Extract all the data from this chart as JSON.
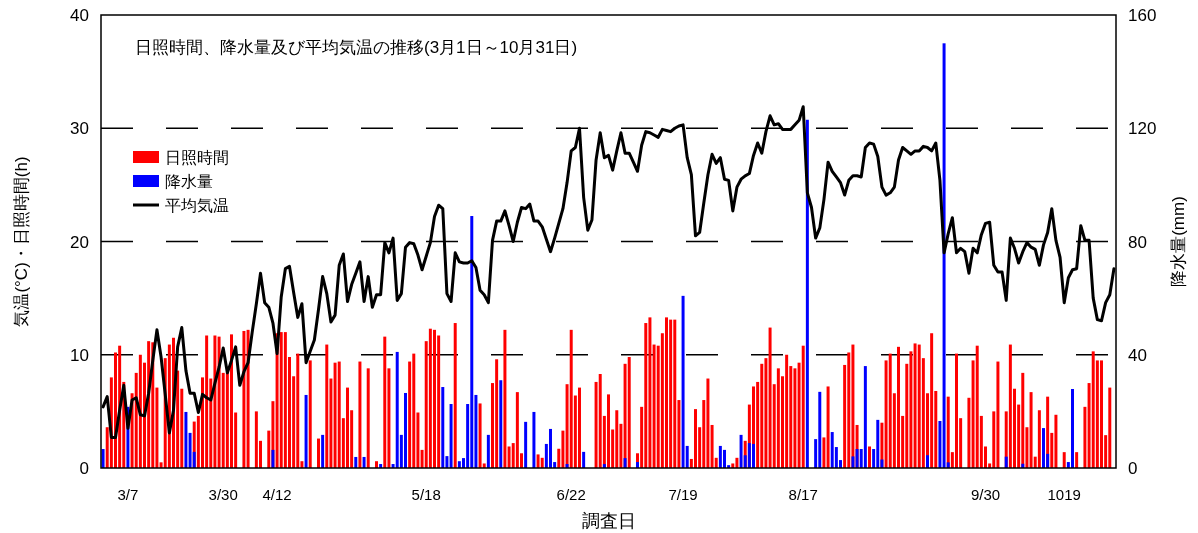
{
  "chart_data": {
    "type": "bar",
    "title": "日照時間、降水量及び平均気温の推移(3月1日～10月31日)",
    "xlabel": "調査日",
    "ylabel": "気温(°C)・日照時間(h)",
    "y2label": "降水量(mm)",
    "categories": [
      null,
      null,
      null,
      null,
      null,
      null,
      "3/7",
      null,
      null,
      null,
      null,
      null,
      null,
      null,
      null,
      null,
      null,
      null,
      null,
      null,
      null,
      null,
      null,
      null,
      null,
      null,
      null,
      null,
      null,
      "3/30",
      null,
      null,
      null,
      null,
      null,
      null,
      null,
      null,
      null,
      null,
      null,
      null,
      "4/12",
      null,
      null,
      null,
      null,
      null,
      null,
      null,
      null,
      null,
      null,
      null,
      null,
      null,
      null,
      null,
      null,
      null,
      null,
      null,
      null,
      null,
      null,
      null,
      null,
      null,
      null,
      null,
      null,
      null,
      null,
      null,
      null,
      null,
      null,
      null,
      "5/18",
      null,
      null,
      null,
      null,
      null,
      null,
      null,
      null,
      null,
      null,
      null,
      null,
      null,
      null,
      null,
      null,
      null,
      null,
      null,
      null,
      null,
      null,
      null,
      null,
      null,
      null,
      null,
      null,
      null,
      null,
      null,
      null,
      null,
      null,
      "6/22",
      null,
      null,
      null,
      null,
      null,
      null,
      null,
      null,
      null,
      null,
      null,
      null,
      null,
      null,
      null,
      null,
      null,
      null,
      null,
      null,
      null,
      null,
      null,
      null,
      null,
      null,
      "7/19",
      null,
      null,
      null,
      null,
      null,
      null,
      null,
      null,
      null,
      null,
      null,
      null,
      null,
      null,
      null,
      null,
      null,
      null,
      null,
      null,
      null,
      null,
      null,
      null,
      null,
      null,
      null,
      null,
      "8/17",
      null,
      null,
      null,
      null,
      null,
      null,
      null,
      null,
      null,
      null,
      null,
      null,
      null,
      null,
      null,
      null,
      null,
      null,
      null,
      null,
      null,
      null,
      null,
      null,
      null,
      null,
      null,
      null,
      null,
      null,
      null,
      null,
      null,
      null,
      null,
      null,
      null,
      null,
      null,
      null,
      null,
      null,
      null,
      "9/30",
      null,
      null,
      null,
      null,
      null,
      null,
      null,
      null,
      null,
      null,
      null,
      null,
      null,
      null,
      null,
      null,
      null,
      null,
      "1019",
      null,
      null,
      null,
      null,
      null,
      null,
      null,
      null,
      null,
      null,
      null,
      null
    ],
    "series": [
      {
        "name": "日照時間",
        "color": "#ff0000",
        "values": [
          null,
          3.6,
          8.0,
          10.2,
          10.8,
          7.6,
          null,
          6.6,
          8.4,
          10.0,
          9.3,
          11.2,
          11.1,
          7.1,
          0.5,
          9.7,
          10.9,
          11.5,
          8.6,
          7.0,
          null,
          null,
          4.1,
          4.6,
          8.0,
          11.7,
          7.9,
          11.7,
          11.6,
          8.4,
          8.4,
          11.8,
          4.9,
          null,
          12.1,
          12.2,
          null,
          5.0,
          2.4,
          null,
          3.3,
          5.9,
          11.9,
          12.0,
          12.0,
          9.8,
          8.1,
          10.1,
          0.6,
          null,
          9.5,
          null,
          2.6,
          null,
          10.9,
          7.9,
          9.3,
          9.4,
          4.4,
          7.1,
          5.1,
          null,
          9.4,
          null,
          8.8,
          null,
          0.6,
          null,
          11.6,
          8.8,
          null,
          null,
          null,
          null,
          9.4,
          10.1,
          4.9,
          1.6,
          11.2,
          12.3,
          12.2,
          11.7,
          null,
          null,
          null,
          12.8,
          null,
          null,
          null,
          null,
          null,
          5.7,
          0.4,
          null,
          7.5,
          9.6,
          null,
          12.2,
          1.9,
          2.2,
          6.7,
          1.3,
          null,
          null,
          null,
          1.2,
          0.9,
          null,
          null,
          null,
          1.7,
          3.3,
          7.4,
          12.2,
          6.4,
          7.1,
          null,
          null,
          null,
          7.6,
          8.3,
          4.6,
          6.5,
          3.4,
          5.1,
          3.9,
          9.2,
          9.8,
          null,
          1.3,
          5.4,
          12.8,
          13.3,
          10.9,
          10.8,
          11.9,
          13.3,
          13.1,
          13.1,
          6.0,
          null,
          null,
          0.8,
          5.2,
          3.6,
          6.0,
          7.9,
          3.8,
          0.9,
          null,
          null,
          null,
          0.4,
          0.9,
          null,
          2.4,
          5.6,
          7.2,
          7.6,
          9.2,
          9.7,
          12.4,
          7.4,
          8.8,
          8.1,
          10.0,
          9.0,
          8.8,
          9.3,
          10.8,
          null,
          null,
          null,
          null,
          2.7,
          7.2,
          null,
          null,
          null,
          9.1,
          10.2,
          10.9,
          3.8,
          null,
          null,
          1.9,
          null,
          null,
          4.0,
          9.5,
          10.1,
          6.6,
          10.7,
          4.6,
          9.2,
          10.3,
          11.0,
          10.9,
          9.7,
          6.6,
          11.9,
          6.8,
          null,
          null,
          6.3,
          1.4,
          10.1,
          4.4,
          null,
          6.2,
          9.5,
          10.8,
          4.6,
          1.9,
          0.4,
          5.0,
          9.4,
          null,
          5.0,
          10.9,
          7.0,
          5.6,
          8.4,
          3.6,
          6.7,
          1.0,
          5.1,
          null,
          6.3,
          3.1,
          4.7,
          null,
          1.4,
          null,
          null,
          1.4,
          null,
          5.4,
          7.5,
          10.3,
          9.5,
          9.5,
          2.9,
          7.1,
          null
        ]
      },
      {
        "name": "降水量",
        "axis": "y2",
        "color": "#0000ff",
        "values": [
          6.7,
          null,
          null,
          null,
          null,
          null,
          21.6,
          null,
          null,
          null,
          null,
          null,
          null,
          null,
          null,
          null,
          null,
          null,
          null,
          null,
          19.8,
          12.4,
          5.7,
          null,
          null,
          null,
          null,
          null,
          null,
          null,
          null,
          null,
          null,
          null,
          null,
          null,
          null,
          null,
          null,
          null,
          null,
          6.4,
          null,
          null,
          null,
          null,
          null,
          null,
          null,
          25.8,
          null,
          null,
          null,
          11.7,
          null,
          null,
          null,
          null,
          null,
          null,
          null,
          3.9,
          null,
          3.9,
          null,
          null,
          null,
          1.4,
          null,
          null,
          1.4,
          41,
          11.7,
          26.5,
          null,
          null,
          null,
          null,
          null,
          null,
          null,
          null,
          28.6,
          4.2,
          22.6,
          null,
          2.4,
          3.5,
          22.6,
          89,
          25.8,
          null,
          null,
          11.7,
          null,
          null,
          31,
          null,
          null,
          null,
          null,
          null,
          16.3,
          null,
          19.8,
          null,
          null,
          8.5,
          13.8,
          2.1,
          null,
          null,
          1.4,
          null,
          null,
          null,
          5.7,
          null,
          null,
          null,
          null,
          1.4,
          null,
          null,
          null,
          null,
          3.5,
          null,
          null,
          2.1,
          null,
          null,
          null,
          null,
          null,
          null,
          null,
          null,
          null,
          null,
          60.8,
          7.8,
          null,
          null,
          null,
          null,
          null,
          null,
          null,
          7.8,
          6.4,
          1.0,
          null,
          null,
          11.7,
          4.5,
          8.8,
          8.5,
          null,
          null,
          null,
          null,
          null,
          null,
          null,
          null,
          null,
          null,
          null,
          null,
          123,
          null,
          10.2,
          26.9,
          null,
          null,
          12.7,
          7.4,
          2.8,
          null,
          null,
          4.1,
          6.7,
          6.7,
          36,
          null,
          6.7,
          17,
          3.0,
          null,
          null,
          null,
          null,
          null,
          null,
          null,
          null,
          null,
          null,
          4.5,
          null,
          null,
          16.6,
          150,
          2.0,
          null,
          null,
          null,
          null,
          null,
          null,
          null,
          null,
          null,
          null,
          null,
          null,
          null,
          4.0,
          null,
          null,
          null,
          1.5,
          null,
          null,
          null,
          null,
          14.1,
          5.0,
          null,
          null,
          null,
          null,
          2.1,
          27.9,
          null,
          null,
          null,
          null,
          null,
          null,
          null,
          null,
          null,
          null
        ]
      },
      {
        "name": "平均気温",
        "type": "line",
        "color": "#000000",
        "values": [
          5.4,
          6.3,
          2.7,
          2.7,
          5.1,
          7.3,
          3.5,
          6.0,
          6.2,
          4.7,
          4.6,
          6.6,
          9.5,
          12.2,
          9.8,
          6.5,
          3.1,
          5.1,
          10.7,
          12.4,
          8.6,
          6.6,
          6.6,
          4.9,
          6.5,
          6.2,
          6.0,
          7.5,
          8.9,
          10.6,
          8.4,
          9.5,
          10.7,
          7.3,
          8.5,
          9.3,
          12.0,
          14.5,
          17.2,
          14.6,
          14.2,
          12.8,
          10.1,
          15.1,
          17.6,
          17.8,
          15.5,
          13.3,
          14.5,
          9.3,
          10.3,
          11.3,
          14.0,
          16.9,
          15.4,
          12.9,
          13.5,
          17.9,
          18.9,
          14.7,
          16.2,
          17.2,
          18.2,
          14.7,
          16.9,
          14.2,
          15.3,
          15.3,
          19.9,
          19.0,
          20.3,
          14.8,
          15.4,
          19.5,
          19.9,
          19.8,
          18.8,
          17.5,
          18.7,
          19.9,
          22.2,
          23.2,
          22.9,
          15.4,
          14.7,
          19.0,
          18.2,
          18.1,
          18.1,
          18.3,
          17.7,
          15.7,
          15.3,
          14.6,
          20.1,
          21.8,
          21.8,
          22.7,
          21.4,
          20.0,
          21.7,
          23.0,
          22.9,
          23.3,
          21.8,
          21.8,
          21.3,
          20.2,
          19.1,
          20.3,
          21.6,
          22.9,
          25.2,
          28.0,
          28.3,
          30.0,
          23.9,
          21.0,
          21.9,
          27.2,
          29.6,
          27.4,
          27.6,
          26.3,
          28.0,
          29.6,
          27.8,
          27.8,
          27.0,
          26.2,
          28.5,
          29.7,
          29.6,
          29.4,
          29.2,
          29.9,
          29.8,
          29.7,
          30.0,
          30.2,
          30.3,
          27.4,
          25.9,
          20.5,
          20.8,
          23.4,
          25.9,
          27.7,
          26.9,
          27.4,
          25.5,
          25.4,
          22.7,
          24.8,
          25.5,
          25.8,
          26.0,
          27.6,
          28.7,
          27.8,
          29.7,
          31.1,
          30.3,
          30.4,
          29.9,
          29.9,
          29.9,
          30.3,
          30.7,
          31.9,
          24.3,
          23.0,
          20.3,
          21.2,
          23.7,
          27.0,
          26.2,
          25.7,
          25.2,
          24.1,
          25.4,
          25.8,
          25.8,
          25.7,
          28.3,
          28.7,
          28.6,
          27.5,
          24.8,
          24.1,
          24.3,
          24.8,
          27.2,
          28.3,
          28.0,
          27.7,
          28.0,
          28.0,
          28.4,
          28.3,
          28.0,
          28.7,
          25.4,
          19.0,
          20.7,
          22.1,
          19.0,
          19.4,
          19.1,
          17.2,
          19.4,
          19.0,
          20.6,
          21.6,
          21.7,
          17.9,
          17.3,
          17.3,
          14.8,
          20.3,
          19.4,
          18.1,
          19.1,
          19.9,
          19.5,
          19.3,
          17.9,
          19.7,
          20.8,
          22.9,
          20.1,
          18.6,
          14.6,
          16.8,
          17.5,
          17.6,
          21.4,
          20.1,
          20.1,
          15.0,
          13.1,
          13.0,
          14.6,
          15.3,
          17.6
        ]
      }
    ],
    "ylim": [
      0,
      40
    ],
    "yticks": [
      0,
      10,
      20,
      30,
      40
    ],
    "y2lim": [
      0,
      160
    ],
    "y2ticks": [
      0,
      40,
      80,
      120,
      160
    ],
    "grid": "y",
    "legend": "top left"
  }
}
